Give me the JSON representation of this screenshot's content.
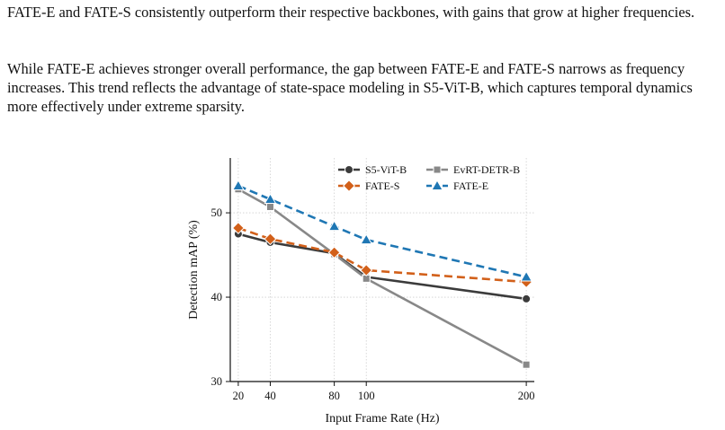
{
  "text": {
    "paragraph_1": "FATE-E and FATE-S consistently outperform their respective backbones, with gains that grow at higher frequencies.",
    "paragraph_2": "While FATE-E achieves stronger overall performance, the gap between FATE-E and FATE-S narrows as frequency increases. This trend reflects the advantage of state-space modeling in S5-ViT-B, which captures temporal dynamics more effectively under extreme sparsity."
  },
  "chart_data": {
    "type": "line",
    "title": "",
    "xlabel": "Input Frame Rate (Hz)",
    "ylabel": "Detection mAP (%)",
    "x": [
      20,
      40,
      80,
      100,
      200
    ],
    "x_ticks": [
      "20",
      "40",
      "80",
      "100",
      "200"
    ],
    "y_ticks": [
      "30",
      "40",
      "50"
    ],
    "xlim": [
      15,
      205
    ],
    "ylim": [
      30,
      56.5
    ],
    "grid": "dotted",
    "legend_position": "top-right",
    "series": [
      {
        "name": "S5-ViT-B",
        "values": [
          47.5,
          46.5,
          45.2,
          42.4,
          39.8
        ],
        "color": "#3b3b3b",
        "dash": "solid",
        "marker": "circle"
      },
      {
        "name": "EvRT-DETR-B",
        "values": [
          52.8,
          50.7,
          45.1,
          42.2,
          32.0
        ],
        "color": "#888888",
        "dash": "solid",
        "marker": "square"
      },
      {
        "name": "FATE-S",
        "values": [
          48.2,
          46.9,
          45.3,
          43.2,
          41.8
        ],
        "color": "#d2601a",
        "dash": "dashed",
        "marker": "diamond"
      },
      {
        "name": "FATE-E",
        "values": [
          53.2,
          51.6,
          48.4,
          46.8,
          42.4
        ],
        "color": "#1f77b4",
        "dash": "dashed",
        "marker": "triangle"
      }
    ]
  }
}
